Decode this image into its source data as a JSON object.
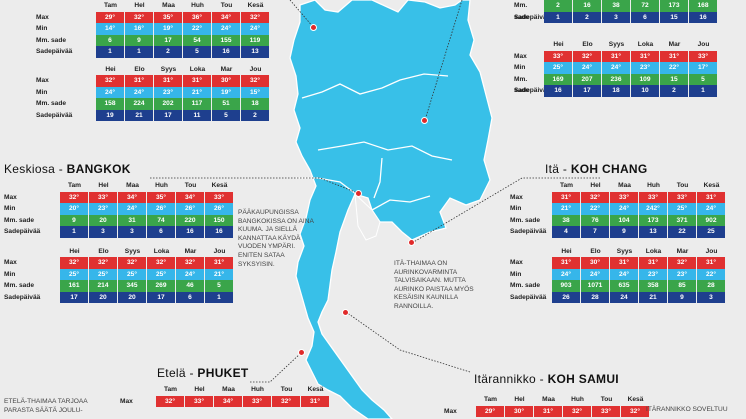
{
  "labels": {
    "max": "Max",
    "min": "Min",
    "rain": "Mm. sade",
    "days": "Sadepäivää"
  },
  "months_a": [
    "Tam",
    "Hel",
    "Maa",
    "Huh",
    "Tou",
    "Kesä"
  ],
  "months_b": [
    "Hei",
    "Elo",
    "Syys",
    "Loka",
    "Mar",
    "Jou"
  ],
  "north": {
    "a": {
      "max": [
        "29°",
        "32°",
        "35°",
        "36°",
        "34°",
        "32°"
      ],
      "min": [
        "14°",
        "16°",
        "19°",
        "22°",
        "24°",
        "24°"
      ],
      "rain": [
        "6",
        "9",
        "17",
        "54",
        "155",
        "119"
      ],
      "days": [
        "1",
        "1",
        "2",
        "5",
        "16",
        "13"
      ]
    },
    "b": {
      "max": [
        "32°",
        "31°",
        "31°",
        "31°",
        "30°",
        "32°"
      ],
      "min": [
        "24°",
        "24°",
        "23°",
        "21°",
        "19°",
        "15°"
      ],
      "rain": [
        "158",
        "224",
        "202",
        "117",
        "51",
        "18"
      ],
      "days": [
        "19",
        "21",
        "17",
        "11",
        "5",
        "2"
      ]
    }
  },
  "northeast": {
    "a_partial": {
      "rain": [
        "2",
        "16",
        "38",
        "72",
        "173",
        "168"
      ],
      "days": [
        "1",
        "2",
        "3",
        "6",
        "15",
        "16"
      ]
    },
    "b": {
      "max": [
        "33°",
        "32°",
        "31°",
        "31°",
        "31°",
        "33°"
      ],
      "min": [
        "25°",
        "24°",
        "24°",
        "23°",
        "22°",
        "17°"
      ],
      "rain": [
        "169",
        "207",
        "236",
        "109",
        "15",
        "5"
      ],
      "days": [
        "16",
        "17",
        "18",
        "10",
        "2",
        "1"
      ]
    }
  },
  "central": {
    "title_region": "Keskiosa - ",
    "title_place": "BANGKOK",
    "a": {
      "max": [
        "32°",
        "33°",
        "34°",
        "35°",
        "34°",
        "33°"
      ],
      "min": [
        "20°",
        "23°",
        "24°",
        "26°",
        "26°",
        "26°"
      ],
      "rain": [
        "9",
        "20",
        "31",
        "74",
        "220",
        "150"
      ],
      "days": [
        "1",
        "3",
        "3",
        "6",
        "16",
        "16"
      ]
    },
    "b": {
      "max": [
        "32°",
        "32°",
        "32°",
        "32°",
        "32°",
        "31°"
      ],
      "min": [
        "25°",
        "25°",
        "25°",
        "25°",
        "24°",
        "21°"
      ],
      "rain": [
        "161",
        "214",
        "345",
        "269",
        "46",
        "5"
      ],
      "days": [
        "17",
        "20",
        "20",
        "17",
        "6",
        "1"
      ]
    },
    "note": "Pääkaupungissa Bangkokissa on aina kuuma. Ja siellä kannattaa käydä vuoden ympäri. Eniten sataa syksyisin."
  },
  "east": {
    "title_region": "Itä - ",
    "title_place": "KOH CHANG",
    "a": {
      "max": [
        "31°",
        "32°",
        "33°",
        "33°",
        "33°",
        "31°"
      ],
      "min": [
        "21°",
        "22°",
        "24°",
        "242°",
        "25°",
        "24°"
      ],
      "rain": [
        "38",
        "76",
        "104",
        "173",
        "371",
        "902"
      ],
      "days": [
        "4",
        "7",
        "9",
        "13",
        "22",
        "25"
      ]
    },
    "b": {
      "max": [
        "31°",
        "30°",
        "31°",
        "31°",
        "32°",
        "31°"
      ],
      "min": [
        "24°",
        "24°",
        "24°",
        "23°",
        "23°",
        "22°"
      ],
      "rain": [
        "903",
        "1071",
        "635",
        "358",
        "85",
        "28"
      ],
      "days": [
        "26",
        "28",
        "24",
        "21",
        "9",
        "3"
      ]
    },
    "note": "Itä-Thaimaa on aurinkovarminta talvisaikaan. Mutta aurinko paistaa myös kesäisin Kaunilla rannoilla."
  },
  "south": {
    "title_region": "Etelä - ",
    "title_place": "PHUKET",
    "max": [
      "32°",
      "33°",
      "34°",
      "33°",
      "32°",
      "31°"
    ],
    "note": "Etelä-Thaimaa tarjoaa parasta säätä joulu-"
  },
  "southeast": {
    "title_region": "Itärannikko - ",
    "title_place": "KOH SAMUI",
    "max": [
      "29°",
      "30°",
      "31°",
      "32°",
      "33°",
      "32°"
    ],
    "note": "Itärannikko soveltuu"
  }
}
